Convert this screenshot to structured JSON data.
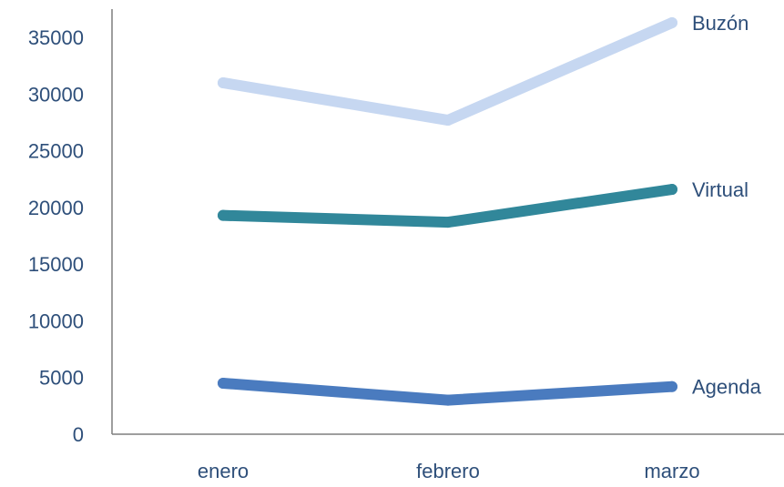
{
  "chart_data": {
    "type": "line",
    "title": "",
    "xlabel": "",
    "ylabel": "",
    "categories": [
      "enero",
      "febrero",
      "marzo"
    ],
    "ylim": [
      0,
      37500
    ],
    "yticks": [
      0,
      5000,
      10000,
      15000,
      20000,
      25000,
      30000,
      35000
    ],
    "grid": false,
    "legend": "end-of-line labels",
    "series": [
      {
        "name": "Buzón",
        "values": [
          31000,
          27700,
          36300
        ],
        "color": "#c6d7f1"
      },
      {
        "name": "Virtual",
        "values": [
          19300,
          18700,
          21600
        ],
        "color": "#31879a"
      },
      {
        "name": "Agenda",
        "values": [
          4500,
          3000,
          4200
        ],
        "color": "#4a7bbf"
      }
    ],
    "colors": {
      "text": "#2e4f7a",
      "axis": "#7f7f7f"
    }
  }
}
